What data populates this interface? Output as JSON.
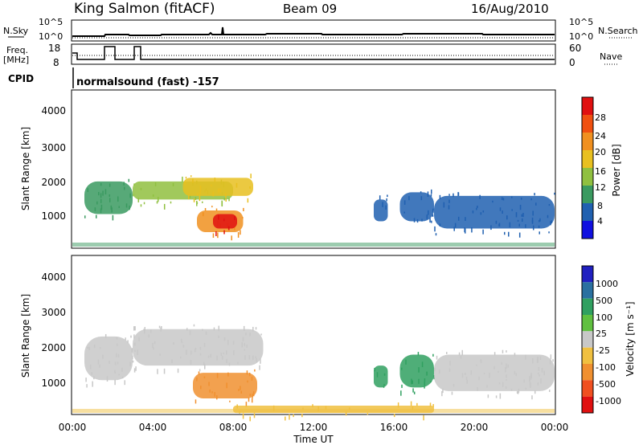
{
  "header": {
    "station": "King Salmon (fitACF)",
    "beam": "Beam 09",
    "date": "16/Aug/2010"
  },
  "top_panel": {
    "nsky_label": "N.Sky",
    "nsearch_label": "N.Search",
    "left_ticks": [
      "10^5",
      "10^0"
    ],
    "right_ticks": [
      "10^5",
      "10^0"
    ]
  },
  "freq_panel": {
    "freq_label_1": "Freq.",
    "freq_label_2": "[MHz]",
    "nave_label": "Nave",
    "left_ticks": [
      "18",
      "8"
    ],
    "right_ticks": [
      "60",
      "0"
    ]
  },
  "cpid": {
    "label": "CPID",
    "text": "normalsound (fast) -157"
  },
  "x_axis": {
    "label": "Time UT",
    "ticks": [
      "00:00",
      "04:00",
      "08:00",
      "12:00",
      "16:00",
      "20:00",
      "00:00"
    ]
  },
  "power_panel": {
    "ylabel": "Slant Range [km]",
    "yticks": [
      "1000",
      "2000",
      "3000",
      "4000"
    ],
    "colorbar_label": "Power [dB]",
    "colorbar_ticks": [
      "4",
      "8",
      "12",
      "16",
      "20",
      "24",
      "28"
    ],
    "colorbar_colors": [
      "#1010e0",
      "#2060b0",
      "#3a9a60",
      "#90c040",
      "#e8c020",
      "#f09020",
      "#f05010",
      "#e01010"
    ]
  },
  "velocity_panel": {
    "ylabel": "Slant Range [km]",
    "yticks": [
      "1000",
      "2000",
      "3000",
      "4000"
    ],
    "colorbar_label": "Velocity [m s⁻¹]",
    "colorbar_ticks": [
      "1000",
      "500",
      "100",
      "25",
      "-25",
      "-100",
      "-500",
      "-1000"
    ],
    "colorbar_colors": [
      "#2020c0",
      "#2a70a0",
      "#30a060",
      "#60c040",
      "#c8c8c8",
      "#f0c040",
      "#f09030",
      "#f05020",
      "#e01010"
    ]
  },
  "chart_data": [
    {
      "type": "heatmap",
      "title": "Power",
      "xlabel": "Time UT",
      "ylabel": "Slant Range [km]",
      "xlim": [
        "00:00",
        "24:00"
      ],
      "ylim": [
        180,
        4500
      ],
      "zlabel": "Power [dB]",
      "zlim": [
        0,
        30
      ],
      "regions": [
        {
          "name": "A",
          "t_start_h": 0.6,
          "t_end_h": 3.0,
          "range_km": [
            1100,
            2000
          ],
          "power_db": 10
        },
        {
          "name": "B",
          "t_start_h": 3.0,
          "t_end_h": 8.0,
          "range_km": [
            1500,
            2000
          ],
          "power_db": 14
        },
        {
          "name": "C",
          "t_start_h": 5.5,
          "t_end_h": 9.0,
          "range_km": [
            1600,
            2100
          ],
          "power_db": 17
        },
        {
          "name": "D",
          "t_start_h": 6.2,
          "t_end_h": 8.5,
          "range_km": [
            600,
            1200
          ],
          "power_db": 20
        },
        {
          "name": "E",
          "t_start_h": 7.0,
          "t_end_h": 8.2,
          "range_km": [
            700,
            1100
          ],
          "power_db": 28
        },
        {
          "name": "F",
          "t_start_h": 15.0,
          "t_end_h": 15.7,
          "range_km": [
            900,
            1500
          ],
          "power_db": 6
        },
        {
          "name": "G",
          "t_start_h": 16.3,
          "t_end_h": 18.0,
          "range_km": [
            900,
            1700
          ],
          "power_db": 6
        },
        {
          "name": "H",
          "t_start_h": 18.0,
          "t_end_h": 24.0,
          "range_km": [
            700,
            1600
          ],
          "power_db": 7
        }
      ]
    },
    {
      "type": "heatmap",
      "title": "Velocity",
      "xlabel": "Time UT",
      "ylabel": "Slant Range [km]",
      "xlim": [
        "00:00",
        "24:00"
      ],
      "ylim": [
        180,
        4500
      ],
      "zlabel": "Velocity [m s⁻¹]",
      "zlim": [
        -1000,
        1000
      ],
      "regions": [
        {
          "name": "A",
          "t_start_h": 0.6,
          "t_end_h": 3.0,
          "range_km": [
            1100,
            2300
          ],
          "velocity_ms": 0
        },
        {
          "name": "B",
          "t_start_h": 3.0,
          "t_end_h": 9.5,
          "range_km": [
            1500,
            2500
          ],
          "velocity_ms": 0
        },
        {
          "name": "C",
          "t_start_h": 6.0,
          "t_end_h": 9.2,
          "range_km": [
            600,
            1300
          ],
          "velocity_ms": -300
        },
        {
          "name": "D",
          "t_start_h": 15.0,
          "t_end_h": 15.7,
          "range_km": [
            900,
            1500
          ],
          "velocity_ms": 150
        },
        {
          "name": "E",
          "t_start_h": 16.3,
          "t_end_h": 18.0,
          "range_km": [
            900,
            1800
          ],
          "velocity_ms": 120
        },
        {
          "name": "F",
          "t_start_h": 18.0,
          "t_end_h": 24.0,
          "range_km": [
            800,
            1800
          ],
          "velocity_ms": 0
        },
        {
          "name": "G",
          "t_start_h": 8.0,
          "t_end_h": 18.0,
          "range_km": [
            200,
            400
          ],
          "velocity_ms": -60
        }
      ]
    }
  ]
}
